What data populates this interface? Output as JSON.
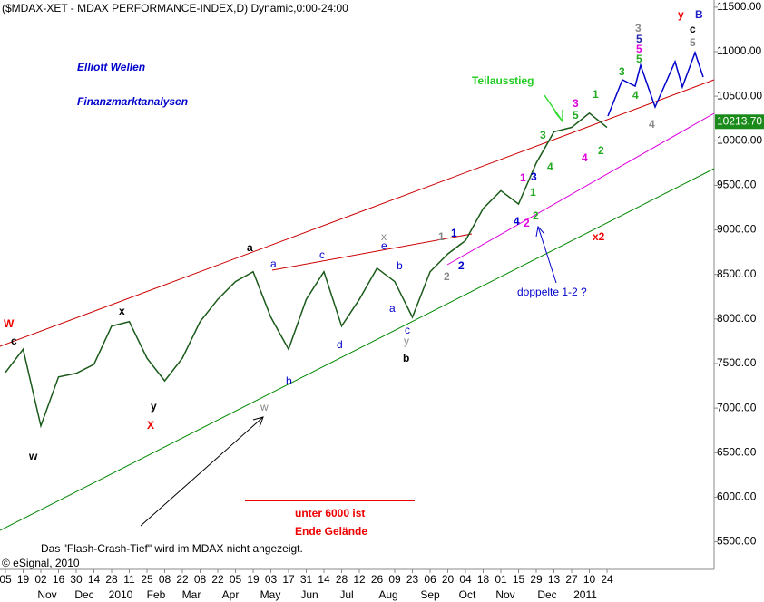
{
  "chart_data": {
    "type": "line",
    "title": "($MDAX-XET - MDAX PERFORMANCE-INDEX,D) Dynamic,0:00-24:00",
    "categories": [
      "05",
      "19",
      "02",
      "16",
      "30",
      "14",
      "28",
      "11",
      "25",
      "08",
      "22",
      "08",
      "22",
      "05",
      "19",
      "03",
      "17",
      "31",
      "14",
      "28",
      "12",
      "26",
      "09",
      "23",
      "06",
      "20",
      "04",
      "18",
      "01",
      "15",
      "29",
      "13",
      "27",
      "10",
      "24"
    ],
    "month_labels": [
      "Nov",
      "Dec",
      "2010",
      "Feb",
      "Mar",
      "Apr",
      "May",
      "Jun",
      "Jul",
      "Aug",
      "Sep",
      "Oct",
      "Nov",
      "Dec",
      "2011"
    ],
    "series": [
      {
        "color": "#1a5a1a",
        "values": [
          7400,
          7660,
          6800,
          7350,
          7390,
          7490,
          7920,
          7970,
          7560,
          7305,
          7560,
          7970,
          8220,
          8420,
          8530,
          8020,
          7660,
          8220,
          8530,
          7920,
          8220,
          8570,
          8420,
          8020,
          8530,
          8730,
          8880,
          9240,
          9440,
          9290,
          9750,
          10100,
          10150,
          10310,
          10150
        ]
      }
    ],
    "last_price": {
      "value": 10213.7,
      "label": "10213.70"
    },
    "ylim": [
      5190,
      11580
    ],
    "yticks": [
      {
        "value": 5500,
        "label": "5500.00"
      },
      {
        "value": 6000,
        "label": "6000.00"
      },
      {
        "value": 6500,
        "label": "6500.00"
      },
      {
        "value": 7000,
        "label": "7000.00"
      },
      {
        "value": 7500,
        "label": "7500.00"
      },
      {
        "value": 8000,
        "label": "8000.00"
      },
      {
        "value": 8500,
        "label": "8500.00"
      },
      {
        "value": 9000,
        "label": "9000.00"
      },
      {
        "value": 9500,
        "label": "9500.00"
      },
      {
        "value": 10000,
        "label": "10000.00"
      },
      {
        "value": 10500,
        "label": "10500.00"
      },
      {
        "value": 11000,
        "label": "11000.00"
      },
      {
        "value": 11500,
        "label": "11500.00"
      }
    ],
    "grid": false,
    "annotations": [
      "Elliott Wellen",
      "Finanzmarktanalysen",
      "Teilausstieg",
      "W",
      "c",
      "w",
      "x",
      "y",
      "X",
      "a",
      "a",
      "b",
      "c",
      "d",
      "x",
      "e",
      "b",
      "a",
      "c",
      "y",
      "b",
      "w",
      "1",
      "1",
      "2",
      "2",
      "3",
      "4",
      "2",
      "1",
      "1",
      "2",
      "3",
      "5",
      "3",
      "4",
      "4",
      "1",
      "2",
      "3",
      "4",
      "4",
      "5",
      "3",
      "5",
      "5",
      "5",
      "c",
      "y",
      "B",
      "x2",
      "doppelte 1-2 ?",
      "unter 6000 ist",
      "Ende Gelände",
      "Das \"Flash-Crash-Tief\" wird im MDAX nicht angezeigt.",
      "© eSignal, 2010"
    ]
  }
}
